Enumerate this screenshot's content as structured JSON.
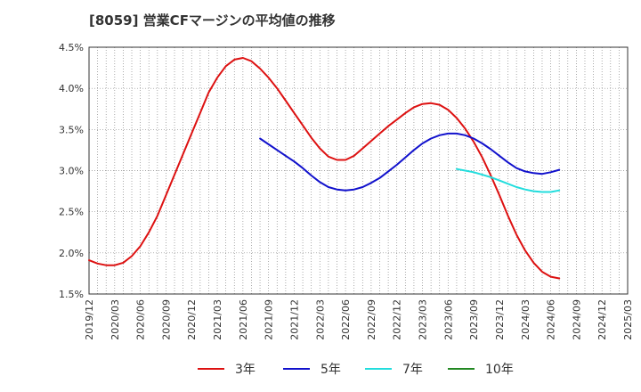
{
  "chart_data": {
    "type": "line",
    "title": "[8059]  営業CFマージンの平均値の推移",
    "xlabel": "",
    "ylabel": "",
    "ylim": [
      1.5,
      4.5
    ],
    "yticks": [
      "4.5%",
      "4.0%",
      "3.5%",
      "3.0%",
      "2.5%",
      "2.0%",
      "1.5%"
    ],
    "xticks": [
      "2019/12",
      "2020/03",
      "2020/06",
      "2020/09",
      "2020/12",
      "2021/03",
      "2021/06",
      "2021/09",
      "2021/12",
      "2022/03",
      "2022/06",
      "2022/09",
      "2022/12",
      "2023/03",
      "2023/06",
      "2023/09",
      "2023/12",
      "2024/03",
      "2024/06",
      "2024/09",
      "2024/12",
      "2025/03"
    ],
    "grid": true,
    "legend_position": "bottom",
    "series": [
      {
        "name": "3年",
        "color": "#dd1111",
        "points": [
          [
            "2019/12",
            1.91
          ],
          [
            "2020/01",
            1.87
          ],
          [
            "2020/02",
            1.85
          ],
          [
            "2020/03",
            1.85
          ],
          [
            "2020/04",
            1.88
          ],
          [
            "2020/05",
            1.96
          ],
          [
            "2020/06",
            2.08
          ],
          [
            "2020/07",
            2.25
          ],
          [
            "2020/08",
            2.45
          ],
          [
            "2020/09",
            2.7
          ],
          [
            "2020/10",
            2.95
          ],
          [
            "2020/11",
            3.2
          ],
          [
            "2020/12",
            3.45
          ],
          [
            "2021/01",
            3.7
          ],
          [
            "2021/02",
            3.95
          ],
          [
            "2021/03",
            4.13
          ],
          [
            "2021/04",
            4.27
          ],
          [
            "2021/05",
            4.35
          ],
          [
            "2021/06",
            4.37
          ],
          [
            "2021/07",
            4.33
          ],
          [
            "2021/08",
            4.24
          ],
          [
            "2021/09",
            4.13
          ],
          [
            "2021/10",
            4.0
          ],
          [
            "2021/11",
            3.85
          ],
          [
            "2021/12",
            3.7
          ],
          [
            "2022/01",
            3.55
          ],
          [
            "2022/02",
            3.4
          ],
          [
            "2022/03",
            3.27
          ],
          [
            "2022/04",
            3.17
          ],
          [
            "2022/05",
            3.13
          ],
          [
            "2022/06",
            3.13
          ],
          [
            "2022/07",
            3.18
          ],
          [
            "2022/08",
            3.27
          ],
          [
            "2022/09",
            3.36
          ],
          [
            "2022/10",
            3.45
          ],
          [
            "2022/11",
            3.54
          ],
          [
            "2022/12",
            3.62
          ],
          [
            "2023/01",
            3.7
          ],
          [
            "2023/02",
            3.77
          ],
          [
            "2023/03",
            3.81
          ],
          [
            "2023/04",
            3.82
          ],
          [
            "2023/05",
            3.8
          ],
          [
            "2023/06",
            3.74
          ],
          [
            "2023/07",
            3.64
          ],
          [
            "2023/08",
            3.51
          ],
          [
            "2023/09",
            3.35
          ],
          [
            "2023/10",
            3.16
          ],
          [
            "2023/11",
            2.94
          ],
          [
            "2023/12",
            2.7
          ],
          [
            "2024/01",
            2.45
          ],
          [
            "2024/02",
            2.22
          ],
          [
            "2024/03",
            2.03
          ],
          [
            "2024/04",
            1.88
          ],
          [
            "2024/05",
            1.77
          ],
          [
            "2024/06",
            1.71
          ],
          [
            "2024/07",
            1.69
          ]
        ]
      },
      {
        "name": "5年",
        "color": "#1111cc",
        "points": [
          [
            "2021/08",
            3.39
          ],
          [
            "2021/09",
            3.32
          ],
          [
            "2021/10",
            3.25
          ],
          [
            "2021/11",
            3.18
          ],
          [
            "2021/12",
            3.11
          ],
          [
            "2022/01",
            3.03
          ],
          [
            "2022/02",
            2.94
          ],
          [
            "2022/03",
            2.86
          ],
          [
            "2022/04",
            2.8
          ],
          [
            "2022/05",
            2.77
          ],
          [
            "2022/06",
            2.76
          ],
          [
            "2022/07",
            2.77
          ],
          [
            "2022/08",
            2.8
          ],
          [
            "2022/09",
            2.85
          ],
          [
            "2022/10",
            2.91
          ],
          [
            "2022/11",
            2.99
          ],
          [
            "2022/12",
            3.07
          ],
          [
            "2023/01",
            3.16
          ],
          [
            "2023/02",
            3.25
          ],
          [
            "2023/03",
            3.33
          ],
          [
            "2023/04",
            3.39
          ],
          [
            "2023/05",
            3.43
          ],
          [
            "2023/06",
            3.45
          ],
          [
            "2023/07",
            3.45
          ],
          [
            "2023/08",
            3.43
          ],
          [
            "2023/09",
            3.39
          ],
          [
            "2023/10",
            3.33
          ],
          [
            "2023/11",
            3.26
          ],
          [
            "2023/12",
            3.18
          ],
          [
            "2024/01",
            3.1
          ],
          [
            "2024/02",
            3.03
          ],
          [
            "2024/03",
            2.99
          ],
          [
            "2024/04",
            2.97
          ],
          [
            "2024/05",
            2.96
          ],
          [
            "2024/06",
            2.98
          ],
          [
            "2024/07",
            3.01
          ]
        ]
      },
      {
        "name": "7年",
        "color": "#22dddd",
        "points": [
          [
            "2023/07",
            3.02
          ],
          [
            "2023/08",
            3.0
          ],
          [
            "2023/09",
            2.98
          ],
          [
            "2023/10",
            2.95
          ],
          [
            "2023/11",
            2.92
          ],
          [
            "2023/12",
            2.88
          ],
          [
            "2024/01",
            2.84
          ],
          [
            "2024/02",
            2.8
          ],
          [
            "2024/03",
            2.77
          ],
          [
            "2024/04",
            2.75
          ],
          [
            "2024/05",
            2.74
          ],
          [
            "2024/06",
            2.74
          ],
          [
            "2024/07",
            2.76
          ]
        ]
      },
      {
        "name": "10年",
        "color": "#228822",
        "points": []
      }
    ]
  }
}
